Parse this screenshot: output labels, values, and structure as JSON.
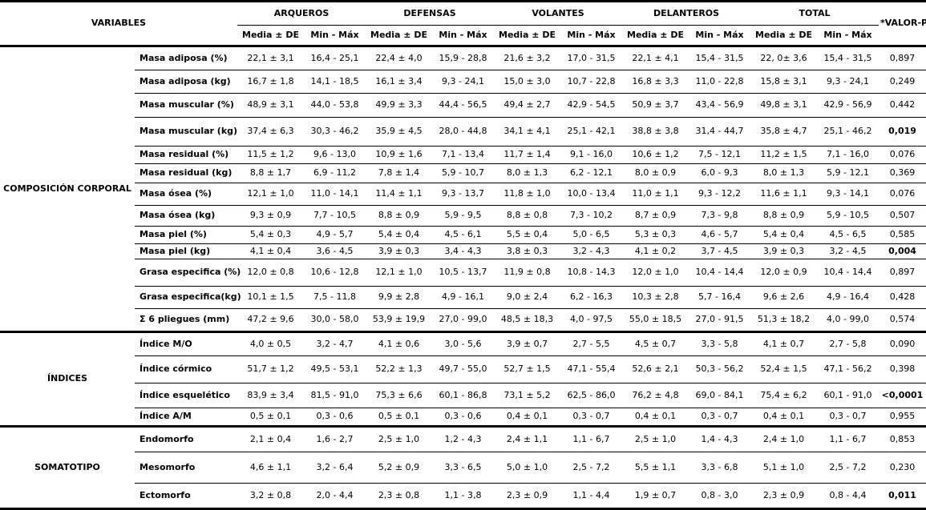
{
  "table": {
    "variables_header": "VARIABLES",
    "groups": [
      "ARQUEROS",
      "DEFENSAS",
      "VOLANTES",
      "DELANTEROS",
      "TOTAL"
    ],
    "subheaders": {
      "media": "Media ± DE",
      "minmax": "Min - Máx"
    },
    "pvalue_header": "*VALOR-P",
    "sections": [
      {
        "category": "COMPOSICIÓN CORPORAL",
        "rows": [
          {
            "variable": "Masa adiposa (%)",
            "cells": [
              "22,1 ± 3,1",
              "16,4 - 25,1",
              "22,4 ± 4,0",
              "15,9 - 28,8",
              "21,6 ± 3,2",
              "17,0 - 31,5",
              "22,1 ± 4,1",
              "15,4 - 31,5",
              "22, 0± 3,6",
              "15,4 - 31,5"
            ],
            "p": "0,897",
            "p_bold": false
          },
          {
            "variable": "Masa adiposa (kg)",
            "cells": [
              "16,7 ± 1,8",
              "14,1 - 18,5",
              "16,1 ± 3,4",
              "9,3 - 24,1",
              "15,0 ± 3,0",
              "10,7 - 22,8",
              "16,8 ± 3,3",
              "11,0 - 22,8",
              "15,8 ± 3,1",
              "9,3 - 24,1"
            ],
            "p": "0,249",
            "p_bold": false
          },
          {
            "variable": "Masa muscular (%)",
            "cells": [
              "48,9 ± 3,1",
              "44,0 - 53,8",
              "49,9 ± 3,3",
              "44,4 - 56,5",
              "49,4 ± 2,7",
              "42,9 - 54,5",
              "50,9 ± 3,7",
              "43,4 - 56,9",
              "49,8 ± 3,1",
              "42,9 - 56,9"
            ],
            "p": "0,442",
            "p_bold": false
          },
          {
            "variable": "Masa muscular (kg)",
            "cells": [
              "37,4 ± 6,3",
              "30,3 - 46,2",
              "35,9 ± 4,5",
              "28,0 - 44,8",
              "34,1 ± 4,1",
              "25,1 - 42,1",
              "38,8 ± 3,8",
              "31,4 - 44,7",
              "35,8 ± 4,7",
              "25,1 - 46,2"
            ],
            "p": "0,019",
            "p_bold": true
          },
          {
            "variable": "Masa residual (%)",
            "cells": [
              "11,5 ± 1,2",
              "9,6 - 13,0",
              "10,9 ± 1,6",
              "7,1 - 13,4",
              "11,7 ± 1,4",
              "9,1 - 16,0",
              "10,6 ± 1,2",
              "7,5 - 12,1",
              "11,2 ± 1,5",
              "7,1 - 16,0"
            ],
            "p": "0,076",
            "p_bold": false
          },
          {
            "variable": "Masa residual (kg)",
            "cells": [
              "8,8 ± 1,7",
              "6,9 - 11,2",
              "7,8 ± 1,4",
              "5,9 - 10,7",
              "8,0 ± 1,3",
              "6,2 - 12,1",
              "8,0 ± 0,9",
              "6,0 - 9,3",
              "8,0 ± 1,3",
              "5,9 - 12,1"
            ],
            "p": "0,369",
            "p_bold": false
          },
          {
            "variable": "Masa ósea (%)",
            "cells": [
              "12,1 ± 1,0",
              "11,0 - 14,1",
              "11,4 ± 1,1",
              "9,3 - 13,7",
              "11,8 ± 1,0",
              "10,0 - 13,4",
              "11,0 ± 1,1",
              "9,3 - 12,2",
              "11,6 ± 1,1",
              "9,3 - 14,1"
            ],
            "p": "0,076",
            "p_bold": false
          },
          {
            "variable": "Masa ósea (kg)",
            "cells": [
              "9,3 ± 0,9",
              "7,7 - 10,5",
              "8,8 ± 0,9",
              "5,9 - 9,5",
              "8,8 ± 0,8",
              "7,3 - 10,2",
              "8,7 ± 0,9",
              "7,3 - 9,8",
              "8,8 ± 0,9",
              "5,9 - 10,5"
            ],
            "p": "0,507",
            "p_bold": false
          },
          {
            "variable": "Masa piel (%)",
            "cells": [
              "5,4 ± 0,3",
              "4,9 - 5,7",
              "5,4 ± 0,4",
              "4,5 - 6,1",
              "5,5 ± 0,4",
              "5,0 - 6,5",
              "5,3 ± 0,3",
              "4,6 - 5,7",
              "5,4 ± 0,4",
              "4,5 - 6,5"
            ],
            "p": "0,585",
            "p_bold": false
          },
          {
            "variable": "Masa piel (kg)",
            "cells": [
              "4,1 ± 0,4",
              "3,6 - 4,5",
              "3,9 ± 0,3",
              "3,4 - 4,3",
              "3,8 ± 0,3",
              "3,2 - 4,3",
              "4,1 ± 0,2",
              "3,7 - 4,5",
              "3,9 ± 0,3",
              "3,2 - 4,5"
            ],
            "p": "0,004",
            "p_bold": true
          },
          {
            "variable": "Grasa especifica (%)",
            "cells": [
              "12,0 ± 0,8",
              "10,6 - 12,8",
              "12,1 ± 1,0",
              "10,5 - 13,7",
              "11,9 ± 0,8",
              "10,8 - 14,3",
              "12,0 ± 1,0",
              "10,4 - 14,4",
              "12,0 ± 0,9",
              "10,4 - 14,4"
            ],
            "p": "0,897",
            "p_bold": false
          },
          {
            "variable": "Grasa especifica(kg)",
            "cells": [
              "10,1 ± 1,5",
              "7,5 - 11,8",
              "9,9 ± 2,8",
              "4,9 - 16,1",
              "9,0 ± 2,4",
              "6,2 - 16,3",
              "10,3 ± 2,8",
              "5,7 - 16,4",
              "9,6 ± 2,6",
              "4,9 - 16,4"
            ],
            "p": "0,428",
            "p_bold": false
          },
          {
            "variable": "Σ 6 pliegues (mm)",
            "cells": [
              "47,2 ± 9,6",
              "30,0 - 58,0",
              "53,9 ± 19,9",
              "27,0 - 99,0",
              "48,5 ± 18,3",
              "4,0 - 97,5",
              "55,0 ± 18,5",
              "27,0 - 91,5",
              "51,3 ± 18,2",
              "4,0 - 99,0"
            ],
            "p": "0,574",
            "p_bold": false
          }
        ]
      },
      {
        "category": "ÍNDICES",
        "rows": [
          {
            "variable": "Índice M/O",
            "cells": [
              "4,0 ± 0,5",
              "3,2 - 4,7",
              "4,1 ± 0,6",
              "3,0 - 5,6",
              "3,9 ± 0,7",
              "2,7 - 5,5",
              "4,5 ± 0,7",
              "3,3 - 5,8",
              "4,1 ± 0,7",
              "2,7 - 5,8"
            ],
            "p": "0,090",
            "p_bold": false
          },
          {
            "variable": "Índice córmico",
            "cells": [
              "51,7 ± 1,2",
              "49,5 - 53,1",
              "52,2 ± 1,3",
              "49,7 - 55,0",
              "52,7 ± 1,5",
              "47,1 - 55,4",
              "52,6 ± 2,1",
              "50,3 - 56,2",
              "52,4 ± 1,5",
              "47,1 - 56,2"
            ],
            "p": "0,398",
            "p_bold": false
          },
          {
            "variable": "Índice esquelético",
            "cells": [
              "83,9 ± 3,4",
              "81,5 - 91,0",
              "75,3 ± 6,6",
              "60,1 - 86,8",
              "73,1 ± 5,2",
              "62,5 - 86,0",
              "76,2 ± 4,8",
              "69,0 - 84,1",
              "75,4 ± 6,2",
              "60,1 - 91,0"
            ],
            "p": "<0,0001",
            "p_bold": true
          },
          {
            "variable": "Índice A/M",
            "cells": [
              "0,5 ± 0,1",
              "0,3 - 0,6",
              "0,5 ± 0,1",
              "0,3 - 0,6",
              "0,4 ± 0,1",
              "0,3 - 0,7",
              "0,4 ± 0,1",
              "0,3 - 0,7",
              "0,4 ± 0,1",
              "0,3 - 0,7"
            ],
            "p": "0,955",
            "p_bold": false
          }
        ]
      },
      {
        "category": "SOMATOTIPO",
        "rows": [
          {
            "variable": "Endomorfo",
            "cells": [
              "2,1 ± 0,4",
              "1,6 - 2,7",
              "2,5 ± 1,0",
              "1,2 - 4,3",
              "2,4 ± 1,1",
              "1,1 - 6,7",
              "2,5 ± 1,0",
              "1,4 - 4,3",
              "2,4 ± 1,0",
              "1,1 - 6,7"
            ],
            "p": "0,853",
            "p_bold": false
          },
          {
            "variable": "Mesomorfo",
            "cells": [
              "4,6 ± 1,1",
              "3,2 - 6,4",
              "5,2 ± 0,9",
              "3,3 - 6,5",
              "5,0 ± 1,0",
              "2,5 - 7,2",
              "5,5 ± 1,1",
              "3,3 - 6,8",
              "5,1 ± 1,0",
              "2,5 - 7,2"
            ],
            "p": "0,230",
            "p_bold": false
          },
          {
            "variable": "Ectomorfo",
            "cells": [
              "3,2 ± 0,8",
              "2,0 - 4,4",
              "2,3 ± 0,8",
              "1,1 - 3,8",
              "2,3 ± 0,9",
              "1,1 - 4,4",
              "1,9 ± 0,7",
              "0,8 - 3,0",
              "2,3 ± 0,9",
              "0,8 - 4,4"
            ],
            "p": "0,011",
            "p_bold": true
          }
        ]
      }
    ]
  }
}
